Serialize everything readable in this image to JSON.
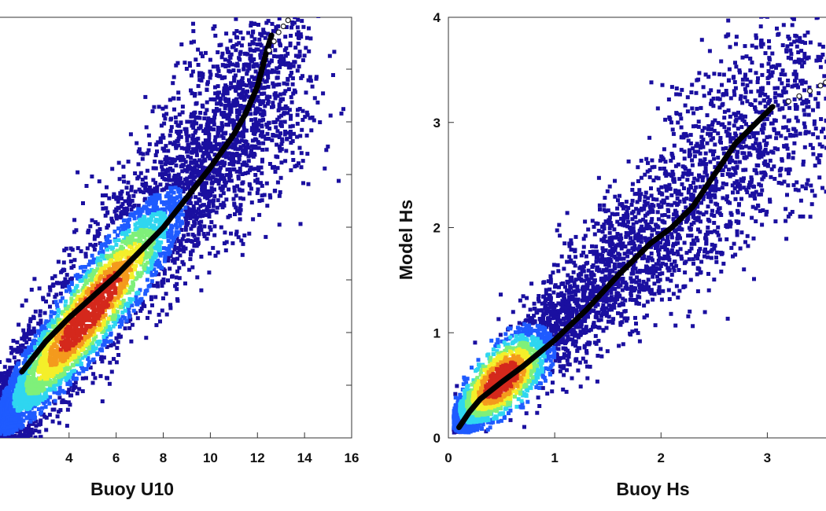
{
  "chart_data": [
    {
      "type": "scatter",
      "title": "",
      "xlabel": "Buoy U10",
      "ylabel": "",
      "xlim": [
        1,
        16
      ],
      "ylim": [
        1,
        15
      ],
      "xticks": [
        4,
        6,
        8,
        10,
        12,
        14,
        16
      ],
      "yticks": [],
      "grid": false,
      "legend": "none",
      "colormap": [
        "#1a0fa0",
        "#1f5bff",
        "#2fd6f0",
        "#7ff07a",
        "#f4ef2a",
        "#f49a1d",
        "#d4281c"
      ],
      "series": [
        {
          "kind": "density",
          "description_points": [
            [
              2.0,
              2.5
            ],
            [
              3,
              3.5
            ],
            [
              4,
              4.6
            ],
            [
              5,
              5.6
            ],
            [
              6,
              6.6
            ],
            [
              7,
              7.6
            ],
            [
              8,
              8.7
            ],
            [
              9,
              9.7
            ],
            [
              10,
              10.8
            ],
            [
              11,
              11.7
            ],
            [
              12,
              12.8
            ]
          ],
          "peak": [
            4.9,
            5.2
          ]
        },
        {
          "kind": "qq-line",
          "x": [
            2.0,
            3.0,
            4.0,
            5.0,
            6.0,
            7.0,
            8.0,
            9.0,
            10.0,
            11.0,
            11.5,
            12.0,
            12.2,
            12.4,
            12.6
          ],
          "y": [
            3.2,
            4.2,
            5.0,
            5.7,
            6.4,
            7.2,
            8.0,
            9.0,
            10.0,
            11.1,
            11.8,
            12.7,
            13.3,
            13.9,
            14.4
          ]
        },
        {
          "kind": "qq-outliers",
          "x": [
            12.5,
            12.7,
            12.9,
            13.1,
            13.3
          ],
          "y": [
            13.9,
            14.2,
            14.5,
            14.7,
            14.9
          ]
        }
      ]
    },
    {
      "type": "scatter",
      "title": "",
      "xlabel": "Buoy Hs",
      "ylabel": "Model Hs",
      "xlim": [
        0,
        3.7
      ],
      "ylim": [
        0,
        4
      ],
      "xticks": [
        0,
        1,
        2,
        3
      ],
      "yticks": [
        0,
        1,
        2,
        3,
        4
      ],
      "grid": false,
      "legend": "none",
      "series": [
        {
          "kind": "density",
          "peak": [
            0.5,
            0.55
          ]
        },
        {
          "kind": "qq-line",
          "x": [
            0.1,
            0.2,
            0.3,
            0.5,
            0.7,
            1.0,
            1.3,
            1.6,
            1.9,
            2.1,
            2.3,
            2.5,
            2.7,
            2.9,
            3.05
          ],
          "y": [
            0.1,
            0.25,
            0.37,
            0.53,
            0.68,
            0.93,
            1.22,
            1.55,
            1.85,
            2.0,
            2.2,
            2.5,
            2.8,
            3.0,
            3.15
          ]
        },
        {
          "kind": "qq-outliers",
          "x": [
            3.2,
            3.3,
            3.4,
            3.5,
            3.55,
            3.6,
            3.65
          ],
          "y": [
            3.2,
            3.25,
            3.3,
            3.35,
            3.38,
            3.4,
            3.42
          ]
        }
      ]
    }
  ]
}
